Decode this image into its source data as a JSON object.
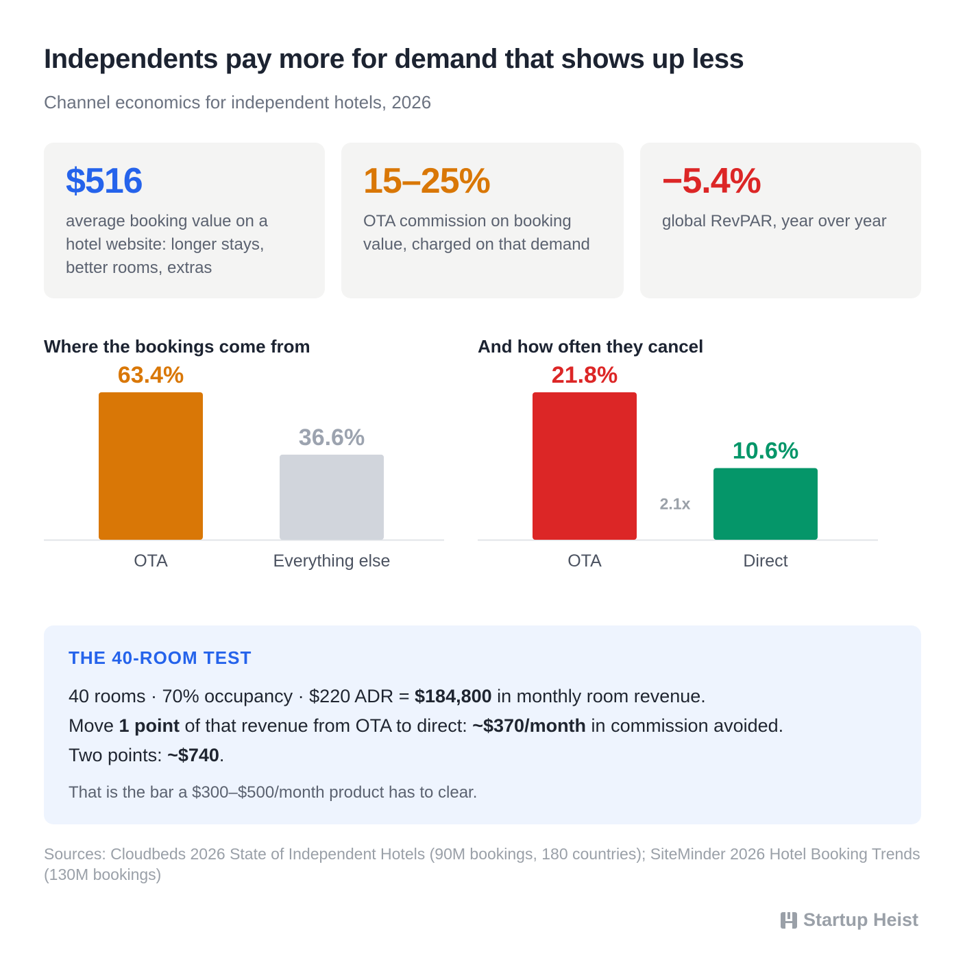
{
  "header": {
    "title": "Independents pay more for demand that shows up less",
    "subtitle": "Channel economics for independent hotels, 2026"
  },
  "stats": [
    {
      "value": "$516",
      "desc": "average booking value on a hotel website: longer stays, better rooms, extras",
      "color": "#2563eb"
    },
    {
      "value": "15–25%",
      "desc": "OTA commission on booking value, charged on that demand",
      "color": "#d97706"
    },
    {
      "value": "−5.4%",
      "desc": "global RevPAR, year over year",
      "color": "#dc2626"
    }
  ],
  "chart_data": [
    {
      "type": "bar",
      "title": "Where the bookings come from",
      "categories": [
        "OTA",
        "Everything else"
      ],
      "values": [
        63.4,
        36.6
      ],
      "value_labels": [
        "63.4%",
        "36.6%"
      ],
      "colors": [
        "#d97706",
        "#d1d5dc"
      ],
      "label_colors": [
        "#d97706",
        "#9ca3af"
      ],
      "unit": "%"
    },
    {
      "type": "bar",
      "title": "And how often they cancel",
      "categories": [
        "OTA",
        "Direct"
      ],
      "values": [
        21.8,
        10.6
      ],
      "value_labels": [
        "21.8%",
        "10.6%"
      ],
      "colors": [
        "#dc2626",
        "#059669"
      ],
      "label_colors": [
        "#dc2626",
        "#059669"
      ],
      "unit": "%",
      "annotation": "2.1x"
    }
  ],
  "test": {
    "heading": "THE 40-ROOM TEST",
    "line1_pre": "40 rooms · 70% occupancy · $220 ADR = ",
    "line1_bold": "$184,800",
    "line1_post": " in monthly room revenue.",
    "line2_pre": "Move ",
    "line2_bold1": "1 point",
    "line2_mid": " of that revenue from OTA to direct: ",
    "line2_bold2": "~$370/month",
    "line2_post": " in commission avoided.",
    "line3_pre": "Two points: ",
    "line3_bold": "~$740",
    "line3_post": ".",
    "note": "That is the bar a $300–$500/month product has to clear."
  },
  "sources": "Sources: Cloudbeds 2026 State of Independent Hotels (90M bookings, 180 countries); SiteMinder 2026 Hotel Booking Trends (130M bookings)",
  "brand": {
    "name": "Startup Heist",
    "icon": "building-logo-icon"
  }
}
